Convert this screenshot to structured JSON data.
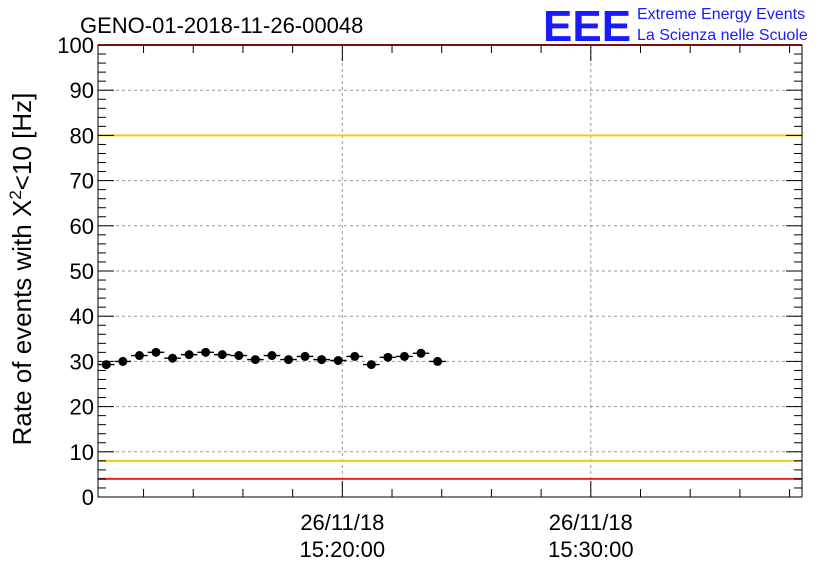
{
  "chart_data": {
    "type": "scatter",
    "title": "GENO-01-2018-11-26-00048",
    "ylabel_main": "Rate of events with X",
    "ylabel_sup": "2",
    "ylabel_tail": "<10 [Hz]",
    "xlabel": "",
    "ylim": [
      0,
      100
    ],
    "yticks": [
      0,
      10,
      20,
      30,
      40,
      50,
      60,
      70,
      80,
      90,
      100
    ],
    "ytick_labels": [
      "0",
      "10",
      "20",
      "30",
      "40",
      "50",
      "60",
      "70",
      "80",
      "90",
      "100"
    ],
    "xlim_seconds_from_first_major": [
      -590,
      1110
    ],
    "x_major_ticks": [
      {
        "offset_s": 0,
        "date": "26/11/18",
        "time": "15:20:00"
      },
      {
        "offset_s": 600,
        "date": "26/11/18",
        "time": "15:30:00"
      }
    ],
    "grid": true,
    "reference_lines": [
      {
        "y": 100,
        "color": "#e8251f"
      },
      {
        "y": 80,
        "color": "#f2c81a"
      },
      {
        "y": 8,
        "color": "#f2c81a"
      },
      {
        "y": 4,
        "color": "#e8251f"
      }
    ],
    "bin_width_s": 40,
    "series": [
      {
        "values": [
          29.3,
          30.0,
          31.3,
          32.0,
          30.7,
          31.5,
          32.0,
          31.5,
          31.3,
          30.4,
          31.3,
          30.4,
          31.1,
          30.4,
          30.2,
          31.1,
          29.3,
          30.9,
          31.1,
          31.8,
          30.0
        ]
      }
    ]
  },
  "logo": {
    "letters": "EEE",
    "line1": "Extreme Energy Events",
    "line2": "La Scienza nelle Scuole"
  },
  "colors": {
    "red": "#e8251f",
    "yellow": "#f2c81a",
    "logo_blue": "#1a1aff",
    "grid": "#9a9a9a"
  }
}
